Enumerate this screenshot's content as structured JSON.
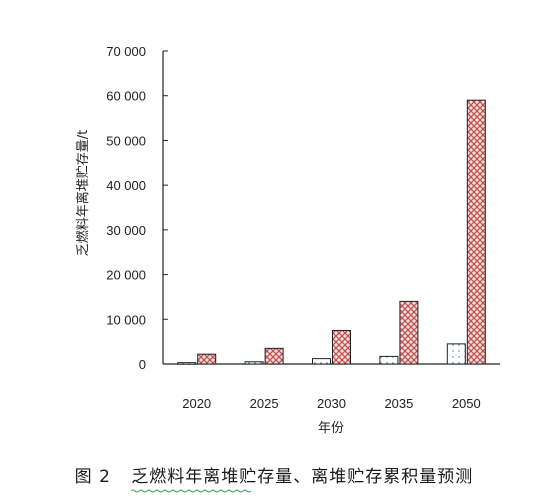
{
  "caption": {
    "number": "图 2",
    "title": "乏燃料年离堆贮存量、离堆贮存累积量预测"
  },
  "colors": {
    "axis": "#222222",
    "hatch_fill": "#f4dede",
    "hatch_line": "#c0504d",
    "bar_outline": "#222222",
    "dot_color": "#2b6cb0"
  },
  "chart_data": {
    "type": "bar",
    "xlabel": "年份",
    "ylabel": "乏燃料年离堆贮存量/t",
    "categories": [
      "2020",
      "2025",
      "2030",
      "2035",
      "2050"
    ],
    "ylim": [
      0,
      70000
    ],
    "yticks": [
      0,
      10000,
      20000,
      30000,
      40000,
      50000,
      60000,
      70000
    ],
    "ytick_labels": [
      "0",
      "10 000",
      "20 000",
      "30 000",
      "40 000",
      "50 000",
      "60 000",
      "70 000"
    ],
    "grid": false,
    "legend": "none",
    "series": [
      {
        "pattern": "dotted",
        "values": [
          300,
          500,
          1200,
          1700,
          4500
        ]
      },
      {
        "pattern": "crosshatch",
        "values": [
          2200,
          3500,
          7500,
          14000,
          59000
        ]
      }
    ]
  }
}
